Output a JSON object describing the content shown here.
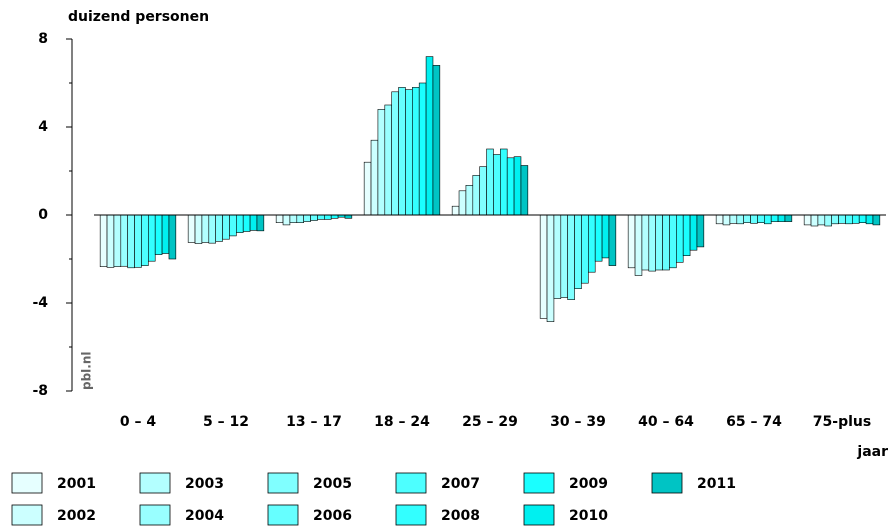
{
  "chart_data": {
    "type": "bar",
    "y_label": "duizend personen",
    "x_label": "jaar",
    "watermark": "pbl.nl",
    "categories": [
      "0 – 4",
      "5 – 12",
      "13 – 17",
      "18 – 24",
      "25 – 29",
      "30 – 39",
      "40 – 64",
      "65 – 74",
      "75-plus"
    ],
    "ylim": [
      -8,
      8
    ],
    "yticks": [
      8,
      4,
      0,
      -4,
      -8
    ],
    "yticks_minor": [
      6,
      2,
      -2,
      -6
    ],
    "grid": false,
    "series": [
      {
        "name": "2001",
        "color": "#e6ffff",
        "values": [
          -2.35,
          -1.25,
          -0.35,
          2.4,
          0.4,
          -4.7,
          -2.4,
          -0.4,
          -0.45
        ]
      },
      {
        "name": "2002",
        "color": "#ccffff",
        "values": [
          -2.38,
          -1.3,
          -0.45,
          3.4,
          1.1,
          -4.85,
          -2.75,
          -0.45,
          -0.5
        ]
      },
      {
        "name": "2003",
        "color": "#b3ffff",
        "values": [
          -2.35,
          -1.25,
          -0.35,
          4.8,
          1.35,
          -3.8,
          -2.5,
          -0.38,
          -0.45
        ]
      },
      {
        "name": "2004",
        "color": "#99ffff",
        "values": [
          -2.33,
          -1.28,
          -0.35,
          5.0,
          1.8,
          -3.75,
          -2.55,
          -0.4,
          -0.5
        ]
      },
      {
        "name": "2005",
        "color": "#80ffff",
        "values": [
          -2.4,
          -1.2,
          -0.3,
          5.6,
          2.2,
          -3.85,
          -2.5,
          -0.35,
          -0.4
        ]
      },
      {
        "name": "2006",
        "color": "#66ffff",
        "values": [
          -2.38,
          -1.1,
          -0.25,
          5.8,
          3.0,
          -3.35,
          -2.5,
          -0.38,
          -0.38
        ]
      },
      {
        "name": "2007",
        "color": "#4dffff",
        "values": [
          -2.3,
          -0.95,
          -0.2,
          5.7,
          2.75,
          -3.1,
          -2.4,
          -0.35,
          -0.4
        ]
      },
      {
        "name": "2008",
        "color": "#33ffff",
        "values": [
          -2.1,
          -0.8,
          -0.2,
          5.8,
          3.0,
          -2.6,
          -2.15,
          -0.4,
          -0.38
        ]
      },
      {
        "name": "2009",
        "color": "#1affff",
        "values": [
          -1.8,
          -0.75,
          -0.15,
          6.0,
          2.6,
          -2.1,
          -1.85,
          -0.3,
          -0.35
        ]
      },
      {
        "name": "2010",
        "color": "#00f0f0",
        "values": [
          -1.75,
          -0.7,
          -0.1,
          7.2,
          2.65,
          -1.95,
          -1.6,
          -0.3,
          -0.4
        ]
      },
      {
        "name": "2011",
        "color": "#00c4c4",
        "values": [
          -2.0,
          -0.72,
          -0.15,
          6.8,
          2.25,
          -2.3,
          -1.45,
          -0.3,
          -0.45
        ]
      }
    ]
  }
}
